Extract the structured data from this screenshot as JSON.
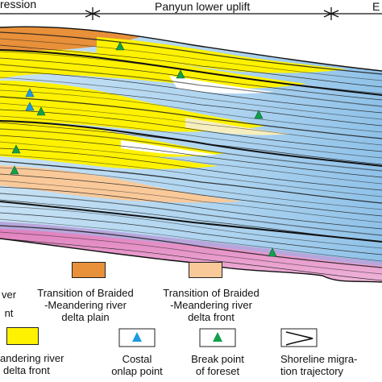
{
  "header": {
    "left_segment": "ression",
    "middle_segment": "Panyun lower uplift",
    "right_segment_fragment": "E"
  },
  "legend": {
    "items": [
      {
        "key": "partial-left-top",
        "lines": [
          "ver",
          "nt"
        ],
        "color": ""
      },
      {
        "key": "braided-meandering-delta-plain",
        "lines": [
          "Transition of Braided",
          "-Meandering river",
          "delta plain"
        ],
        "color": "#e8903a"
      },
      {
        "key": "braided-meandering-delta-front",
        "lines": [
          "Transition of Braided",
          "-Meandering river",
          "delta front"
        ],
        "color": "#f9c99a"
      },
      {
        "key": "meandering-delta-front",
        "lines": [
          "andering river",
          "delta front"
        ],
        "color": "#fff200"
      },
      {
        "key": "coastal-onlap-point",
        "lines": [
          "Costal",
          "onlap point"
        ],
        "icon": "blue-triangle-icon"
      },
      {
        "key": "break-point-of-foreset",
        "lines": [
          "Break point",
          "of foreset"
        ],
        "icon": "green-triangle-icon"
      },
      {
        "key": "shoreline-migration-trajectory",
        "lines": [
          "Shoreline migra-",
          "tion trajectory"
        ],
        "icon": "trajectory-icon"
      }
    ]
  },
  "colors": {
    "orange": "#e8903a",
    "peach": "#f9c99a",
    "yellow": "#fff200",
    "blue": "#b7d8f0",
    "blue_deep": "#93c2e6",
    "pink": "#e48fc1",
    "purple": "#b7a6db",
    "onlap_marker": "#1e9be0",
    "break_marker": "#12a04a"
  }
}
